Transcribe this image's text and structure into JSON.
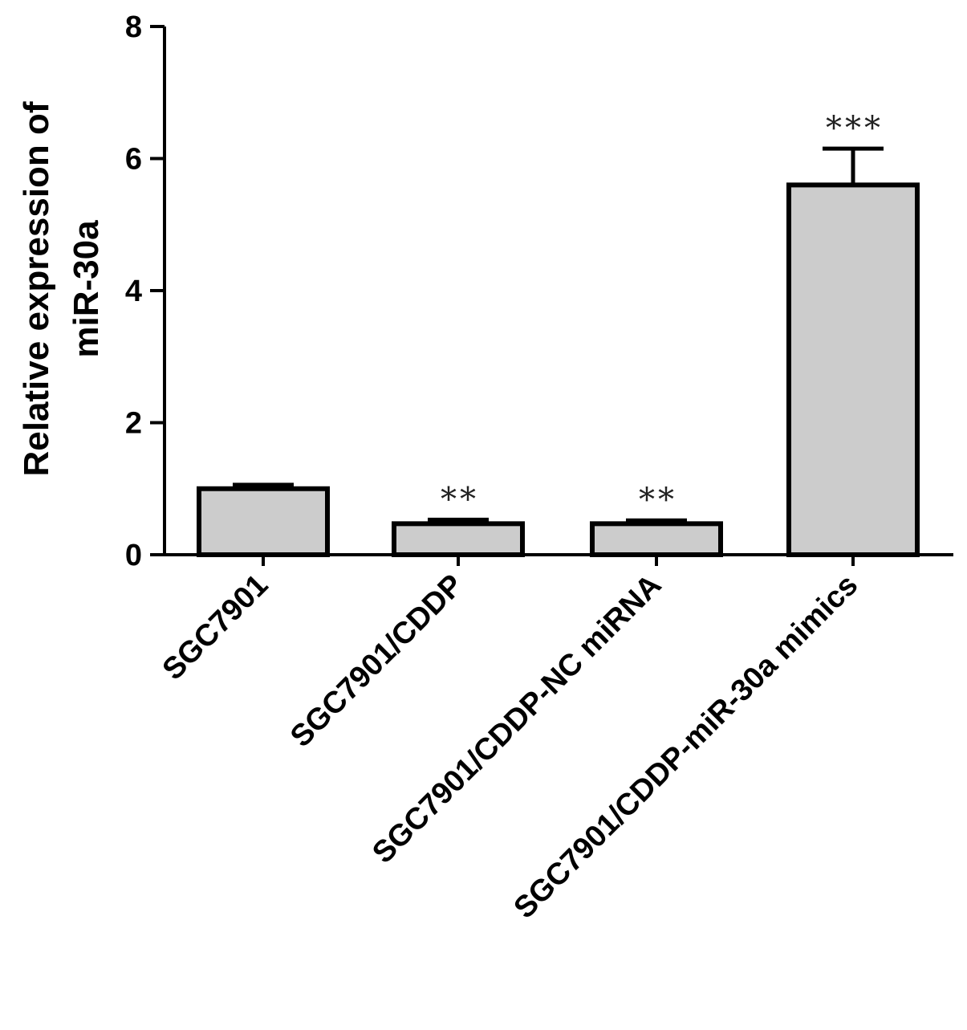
{
  "chart_data": {
    "type": "bar",
    "title": "",
    "ylabel": [
      "Relative expression of",
      "miR-30a"
    ],
    "xlabel": "",
    "ylim": [
      0,
      8
    ],
    "yticks": [
      "0",
      "2",
      "4",
      "6",
      "8"
    ],
    "categories": [
      "SGC7901",
      "SGC7901/CDDP",
      "SGC7901/CDDP-NC miRNA",
      "SGC7901/CDDP-miR-30a mimics"
    ],
    "values": [
      1.0,
      0.47,
      0.47,
      5.6
    ],
    "errors": [
      0.06,
      0.06,
      0.05,
      0.55
    ],
    "significance": [
      "",
      "**",
      "**",
      "***"
    ],
    "colors": {
      "bar_fill": "#cccccc",
      "bar_stroke": "#000000"
    },
    "grid": false,
    "legend": "none"
  }
}
